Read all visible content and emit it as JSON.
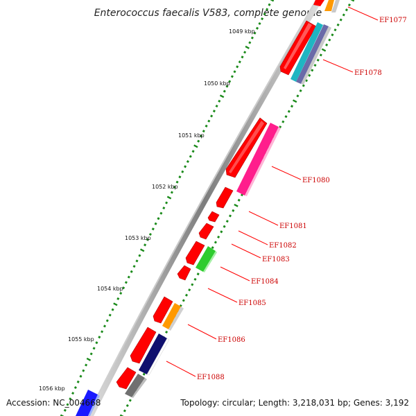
{
  "title": "Enterococcus faecalis V583, complete genome",
  "footer": {
    "accession": "Accession: NC_004668",
    "topology": "Topology: circular; Length: 3,218,031 bp; Genes: 3,192"
  },
  "scale_ticks": [
    "1049 kbp",
    "1050 kbp",
    "1051 kbp",
    "1052 kbp",
    "1053 kbp",
    "1054 kbp",
    "1055 kbp",
    "1056 kbp"
  ],
  "gene_labels": [
    "EF1077",
    "EF1078",
    "EF1080",
    "EF1081",
    "EF1082",
    "EF1083",
    "EF1084",
    "EF1085",
    "EF1086",
    "EF1088"
  ],
  "colors": {
    "gene_forward": "#ff0000",
    "gene_label": "#cc0000",
    "tick_mark": "#1a8a1a",
    "backbone": "#9a9a9a",
    "orange": "#ff9900",
    "teal": "#1fb5c2",
    "slate": "#6a6aa8",
    "magenta": "#ff1e8c",
    "green": "#2ecc2e",
    "navy": "#10106e",
    "gray": "#707070",
    "blue": "#1a1aff"
  }
}
